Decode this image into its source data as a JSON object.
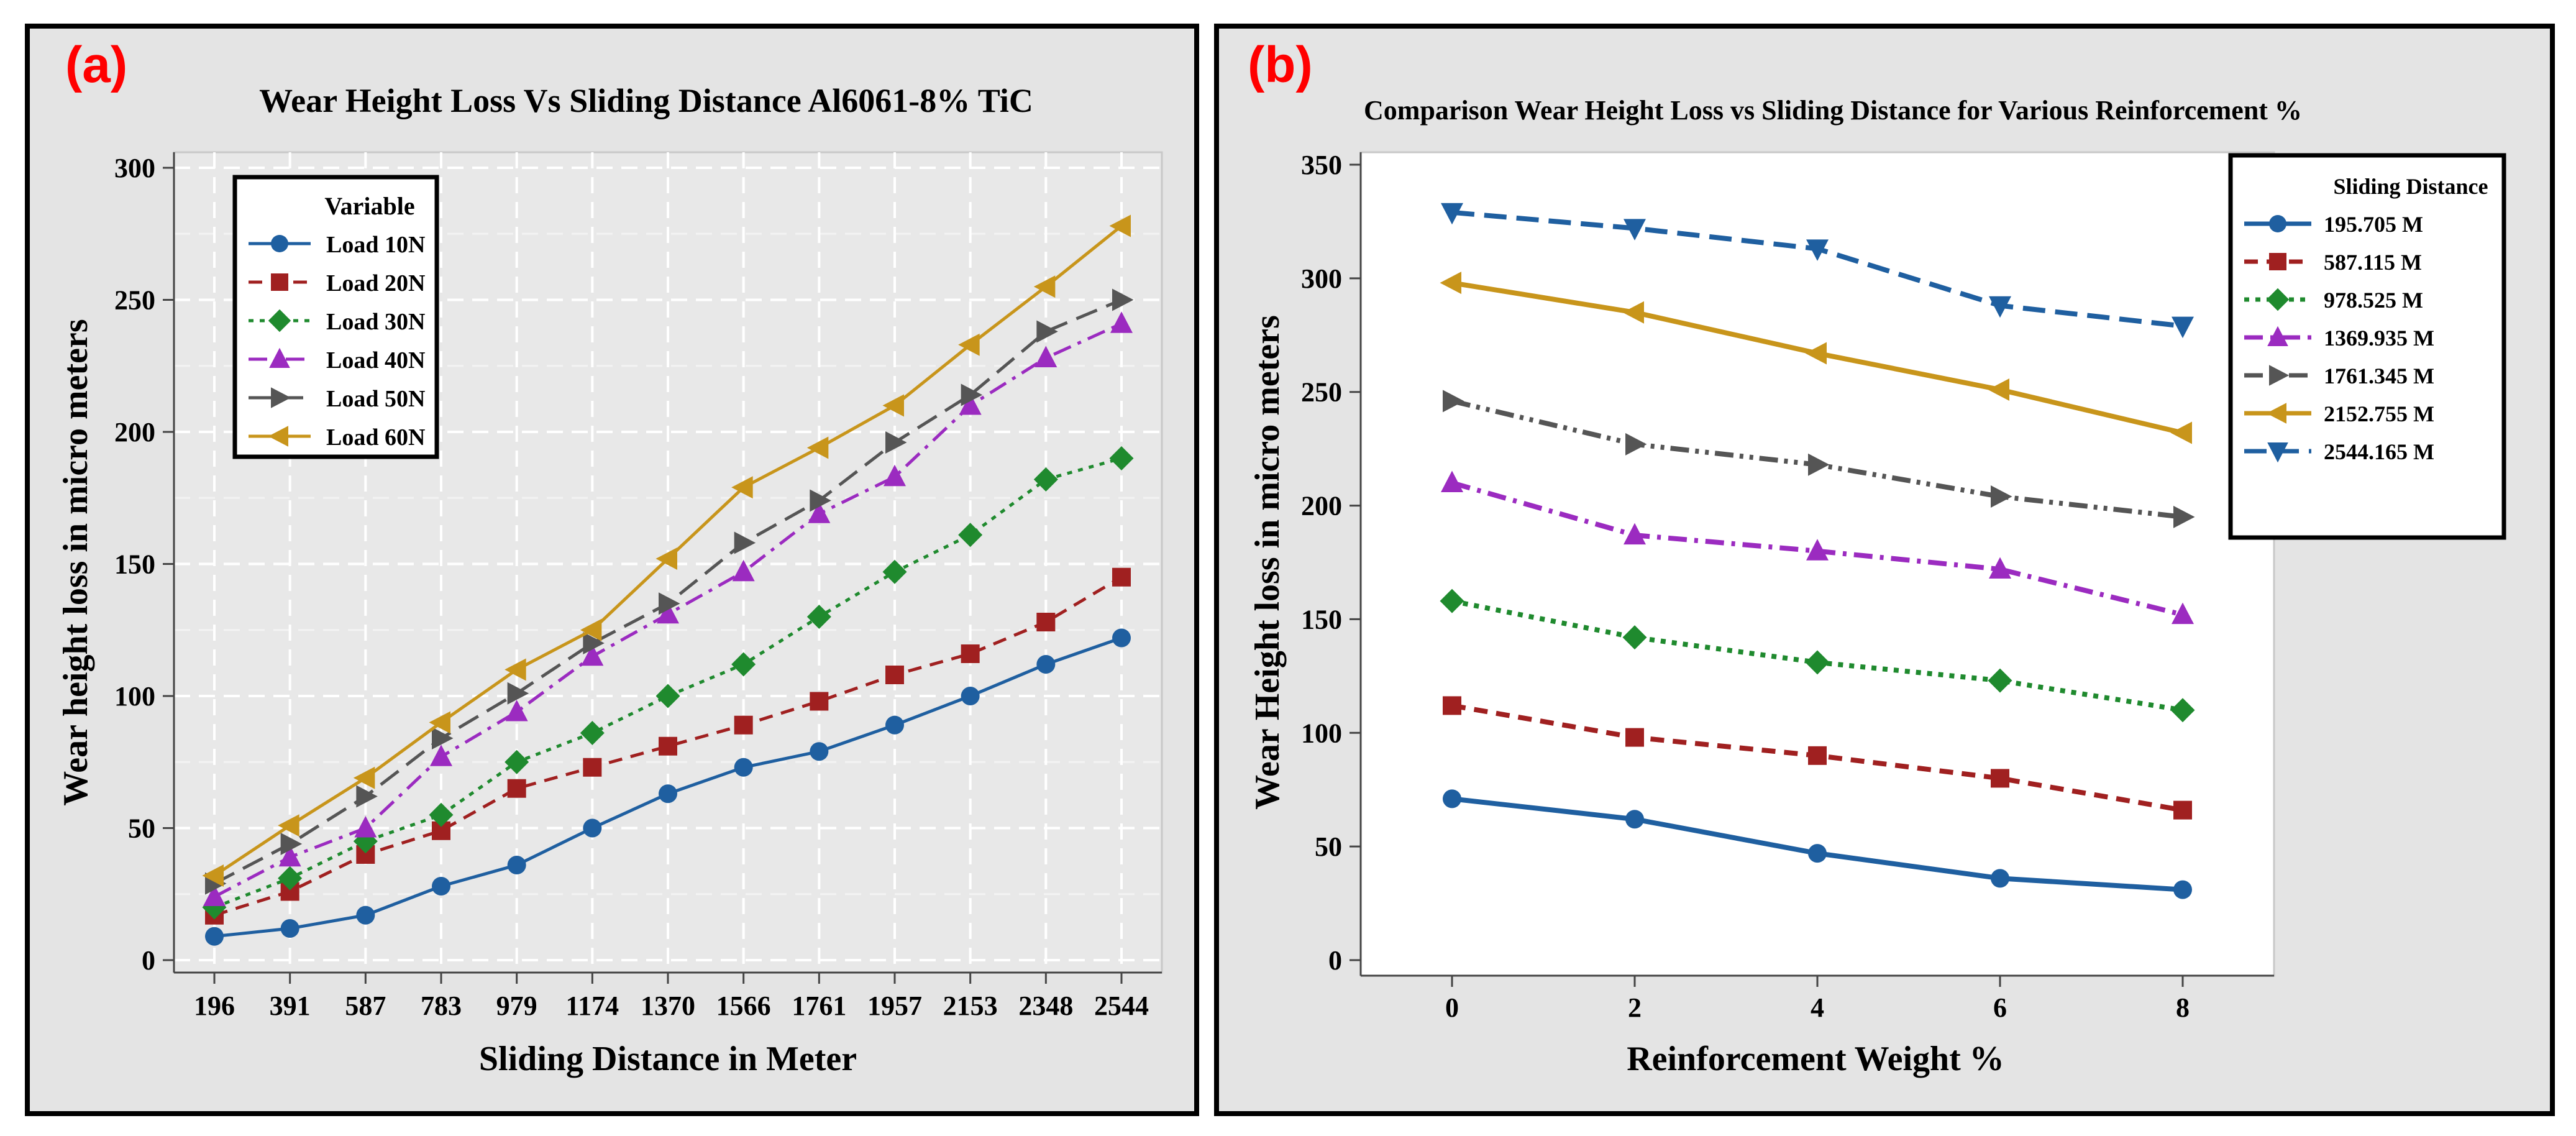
{
  "chart_data": [
    {
      "panel_label": "(a)",
      "type": "line",
      "title": "Wear Height Loss Vs Sliding Distance Al6061-8% TiC",
      "xlabel": "Sliding Distance in Meter",
      "ylabel": "Wear height loss in micro meters",
      "categories": [
        "196",
        "391",
        "587",
        "783",
        "979",
        "1174",
        "1370",
        "1566",
        "1761",
        "1957",
        "2153",
        "2348",
        "2544"
      ],
      "ylim": [
        0,
        300
      ],
      "yticks": [
        "0",
        "50",
        "100",
        "150",
        "200",
        "250",
        "300"
      ],
      "grid": true,
      "legend_title": "Variable",
      "legend_position": "top-left",
      "series": [
        {
          "name": "Load 10N",
          "color": "#1f5fa0",
          "marker": "circle",
          "dash": "solid",
          "values": [
            9,
            12,
            17,
            28,
            36,
            50,
            63,
            73,
            79,
            89,
            100,
            112,
            122
          ]
        },
        {
          "name": "Load 20N",
          "color": "#a02020",
          "marker": "square",
          "dash": "dash",
          "values": [
            17,
            26,
            40,
            49,
            65,
            73,
            81,
            89,
            98,
            108,
            116,
            128,
            145
          ]
        },
        {
          "name": "Load 30N",
          "color": "#1f8a2e",
          "marker": "diamond",
          "dash": "dot",
          "values": [
            20,
            31,
            45,
            55,
            75,
            86,
            100,
            112,
            130,
            147,
            161,
            182,
            190
          ]
        },
        {
          "name": "Load 40N",
          "color": "#9b2bc0",
          "marker": "triangle-up",
          "dash": "dashdot",
          "values": [
            24,
            39,
            50,
            77,
            94,
            115,
            131,
            147,
            169,
            183,
            210,
            228,
            241
          ]
        },
        {
          "name": "Load 50N",
          "color": "#555555",
          "marker": "triangle-right",
          "dash": "longdash",
          "values": [
            29,
            44,
            62,
            84,
            101,
            120,
            135,
            158,
            174,
            196,
            214,
            238,
            250
          ]
        },
        {
          "name": "Load 60N",
          "color": "#c8951b",
          "marker": "triangle-left",
          "dash": "solid",
          "values": [
            32,
            51,
            69,
            90,
            110,
            125,
            152,
            179,
            194,
            210,
            233,
            255,
            278
          ]
        }
      ]
    },
    {
      "panel_label": "(b)",
      "type": "line",
      "title": "Comparison Wear Height Loss vs Sliding Distance for Various Reinforcement %",
      "xlabel": "Reinforcement Weight %",
      "ylabel": "Wear Height loss in micro meters",
      "x": [
        0,
        2,
        4,
        6,
        8
      ],
      "xlim": [
        -1,
        9
      ],
      "xticks": [
        "0",
        "2",
        "4",
        "6",
        "8"
      ],
      "ylim": [
        0,
        350
      ],
      "yticks": [
        "0",
        "50",
        "100",
        "150",
        "200",
        "250",
        "300",
        "350"
      ],
      "grid": false,
      "legend_title": "Sliding Distance",
      "legend_position": "top-right",
      "series": [
        {
          "name": "195.705 M",
          "color": "#1f5fa0",
          "marker": "circle",
          "dash": "solid",
          "values": [
            71,
            62,
            47,
            36,
            31
          ]
        },
        {
          "name": "587.115 M",
          "color": "#a02020",
          "marker": "square",
          "dash": "dash",
          "values": [
            112,
            98,
            90,
            80,
            66
          ]
        },
        {
          "name": "978.525 M",
          "color": "#1f8a2e",
          "marker": "diamond",
          "dash": "dot",
          "values": [
            158,
            142,
            131,
            123,
            110
          ]
        },
        {
          "name": "1369.935 M",
          "color": "#9b2bc0",
          "marker": "triangle-up",
          "dash": "dashdot",
          "values": [
            210,
            187,
            180,
            172,
            152
          ]
        },
        {
          "name": "1761.345 M",
          "color": "#555555",
          "marker": "triangle-right",
          "dash": "dashdotdot",
          "values": [
            246,
            227,
            218,
            204,
            195
          ]
        },
        {
          "name": "2152.755 M",
          "color": "#c8951b",
          "marker": "triangle-left",
          "dash": "solid",
          "values": [
            298,
            285,
            267,
            251,
            232
          ]
        },
        {
          "name": "2544.165 M",
          "color": "#1f5fa0",
          "marker": "triangle-down",
          "dash": "longdash",
          "values": [
            329,
            322,
            313,
            288,
            279
          ]
        }
      ]
    }
  ]
}
